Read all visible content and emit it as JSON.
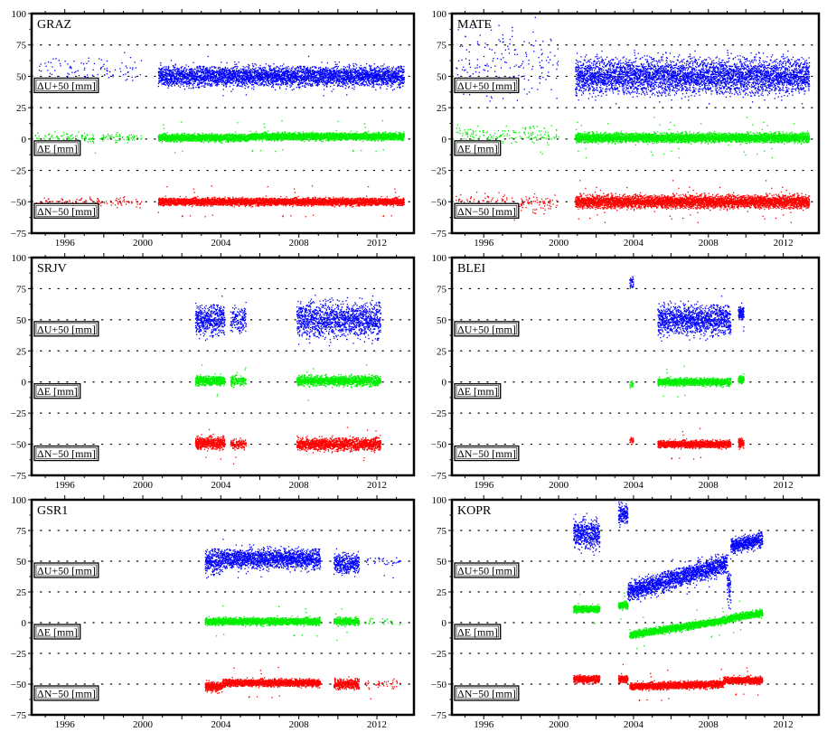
{
  "chart_data": [
    {
      "type": "scatter",
      "title": "GRAZ",
      "xlim": [
        1994.3,
        2013.9
      ],
      "ylim": [
        -75,
        100
      ],
      "xticks": [
        "1996",
        "2000",
        "2004",
        "2008",
        "2012"
      ],
      "yticks": [
        "100",
        "75",
        "50",
        "25",
        "0",
        "-25",
        "-50",
        "-75"
      ],
      "grid": true,
      "series": [
        {
          "name": "ΔU+50 [mm]",
          "color": "#0000ff",
          "intervals": [
            [
              1994.5,
              1998.6,
              53,
              6,
              0.05
            ],
            [
              1998.8,
              2000.0,
              55,
              6,
              0.06
            ],
            [
              2000.8,
              2013.4,
              50,
              4,
              0.9
            ]
          ]
        },
        {
          "name": "ΔE [mm]",
          "color": "#00ee00",
          "intervals": [
            [
              1994.5,
              2000.0,
              1,
              2,
              0.07
            ],
            [
              2000.8,
              2005.5,
              1,
              1.5,
              0.9
            ],
            [
              2005.5,
              2013.4,
              2,
              1.5,
              0.9
            ]
          ]
        },
        {
          "name": "ΔN−50 [mm]",
          "color": "#ff0000",
          "intervals": [
            [
              1994.5,
              2000.0,
              -50,
              2,
              0.07
            ],
            [
              2000.8,
              2013.4,
              -50,
              1.5,
              0.9
            ]
          ]
        }
      ]
    },
    {
      "type": "scatter",
      "title": "MATE",
      "xlim": [
        1994.3,
        2013.9
      ],
      "ylim": [
        -75,
        100
      ],
      "xticks": [
        "1996",
        "2000",
        "2004",
        "2008",
        "2012"
      ],
      "yticks": [
        "100",
        "75",
        "50",
        "25",
        "0",
        "-25",
        "-50",
        "-75"
      ],
      "grid": true,
      "series": [
        {
          "name": "ΔU+50 [mm]",
          "color": "#0000ff",
          "intervals": [
            [
              1994.5,
              2000.0,
              62,
              14,
              0.08
            ],
            [
              2000.9,
              2013.4,
              50,
              7,
              0.95
            ]
          ]
        },
        {
          "name": "ΔE [mm]",
          "color": "#00ee00",
          "intervals": [
            [
              1994.5,
              2000.0,
              3,
              4,
              0.08
            ],
            [
              2000.9,
              2013.4,
              1,
              1.8,
              0.95
            ]
          ]
        },
        {
          "name": "ΔN−50 [mm]",
          "color": "#ff0000",
          "intervals": [
            [
              1994.5,
              2000.0,
              -52,
              4,
              0.08
            ],
            [
              2000.9,
              2013.4,
              -50,
              2.5,
              0.95
            ]
          ]
        }
      ]
    },
    {
      "type": "scatter",
      "title": "SRJV",
      "xlim": [
        1994.3,
        2013.9
      ],
      "ylim": [
        -75,
        100
      ],
      "xticks": [
        "1996",
        "2000",
        "2004",
        "2008",
        "2012"
      ],
      "yticks": [
        "100",
        "75",
        "50",
        "25",
        "0",
        "-25",
        "-50",
        "-75"
      ],
      "grid": true,
      "series": [
        {
          "name": "ΔU+50 [mm]",
          "color": "#0000ff",
          "intervals": [
            [
              2002.7,
              2004.2,
              50,
              6,
              0.9
            ],
            [
              2004.5,
              2005.3,
              50,
              5,
              0.5
            ],
            [
              2007.9,
              2012.2,
              50,
              7,
              0.85
            ]
          ]
        },
        {
          "name": "ΔE [mm]",
          "color": "#00ee00",
          "intervals": [
            [
              2002.7,
              2004.2,
              1,
              2,
              0.9
            ],
            [
              2004.5,
              2005.3,
              1,
              2,
              0.5
            ],
            [
              2007.9,
              2012.2,
              1,
              2,
              0.85
            ]
          ]
        },
        {
          "name": "ΔN−50 [mm]",
          "color": "#ff0000",
          "intervals": [
            [
              2002.7,
              2004.2,
              -49,
              2.5,
              0.9
            ],
            [
              2004.5,
              2005.3,
              -50,
              2,
              0.5
            ],
            [
              2007.9,
              2012.2,
              -50,
              2.5,
              0.85
            ]
          ]
        }
      ]
    },
    {
      "type": "scatter",
      "title": "BLEI",
      "xlim": [
        1994.3,
        2013.9
      ],
      "ylim": [
        -75,
        100
      ],
      "xticks": [
        "1996",
        "2000",
        "2004",
        "2008",
        "2012"
      ],
      "yticks": [
        "100",
        "75",
        "50",
        "25",
        "0",
        "-25",
        "-50",
        "-75"
      ],
      "grid": true,
      "series": [
        {
          "name": "ΔU+50 [mm]",
          "color": "#0000ff",
          "intervals": [
            [
              2003.8,
              2004.0,
              80,
              3,
              0.4
            ],
            [
              2005.3,
              2009.2,
              50,
              6,
              0.9
            ],
            [
              2009.6,
              2009.9,
              55,
              3,
              0.9
            ]
          ]
        },
        {
          "name": "ΔE [mm]",
          "color": "#00ee00",
          "intervals": [
            [
              2003.8,
              2004.0,
              -2,
              1.5,
              0.4
            ],
            [
              2005.3,
              2009.2,
              0,
              1.5,
              0.9
            ],
            [
              2009.6,
              2009.9,
              2,
              1.5,
              0.9
            ]
          ]
        },
        {
          "name": "ΔN−50 [mm]",
          "color": "#ff0000",
          "intervals": [
            [
              2003.8,
              2004.0,
              -48,
              1.5,
              0.4
            ],
            [
              2005.3,
              2009.2,
              -50,
              1.5,
              0.9
            ],
            [
              2009.6,
              2009.9,
              -49,
              2,
              0.9
            ]
          ]
        }
      ]
    },
    {
      "type": "scatter",
      "title": "GSR1",
      "xlim": [
        1994.3,
        2013.9
      ],
      "ylim": [
        -75,
        100
      ],
      "xticks": [
        "1996",
        "2000",
        "2004",
        "2008",
        "2012"
      ],
      "yticks": [
        "100",
        "75",
        "50",
        "25",
        "0",
        "-25",
        "-50",
        "-75"
      ],
      "grid": true,
      "series": [
        {
          "name": "ΔU+50 [mm]",
          "color": "#0000ff",
          "intervals": [
            [
              2003.2,
              2004.1,
              50,
              5,
              0.9
            ],
            [
              2004.1,
              2009.1,
              52,
              4,
              0.9
            ],
            [
              2009.8,
              2011.1,
              48,
              4,
              0.8
            ],
            [
              2011.4,
              2013.2,
              50,
              3,
              0.05
            ]
          ]
        },
        {
          "name": "ΔE [mm]",
          "color": "#00ee00",
          "intervals": [
            [
              2003.2,
              2009.1,
              1,
              1.5,
              0.9
            ],
            [
              2009.8,
              2011.1,
              1,
              1.5,
              0.8
            ],
            [
              2011.4,
              2013.2,
              1,
              1.5,
              0.05
            ]
          ]
        },
        {
          "name": "ΔN−50 [mm]",
          "color": "#ff0000",
          "intervals": [
            [
              2003.2,
              2004.1,
              -52,
              2,
              0.9
            ],
            [
              2004.1,
              2009.1,
              -49,
              1.5,
              0.9
            ],
            [
              2009.8,
              2011.1,
              -50,
              2,
              0.8
            ],
            [
              2011.4,
              2013.2,
              -50,
              2,
              0.05
            ]
          ]
        }
      ]
    },
    {
      "type": "scatter",
      "title": "KOPR",
      "xlim": [
        1994.3,
        2013.9
      ],
      "ylim": [
        -75,
        100
      ],
      "xticks": [
        "1996",
        "2000",
        "2004",
        "2008",
        "2012"
      ],
      "yticks": [
        "100",
        "75",
        "50",
        "25",
        "0",
        "-25",
        "-50",
        "-75"
      ],
      "grid": true,
      "series": [
        {
          "name": "ΔU+50 [mm]",
          "color": "#0000ff",
          "intervals": [
            [
              2000.8,
              2002.2,
              72,
              6,
              0.9
            ],
            [
              2003.2,
              2003.7,
              88,
              4,
              0.9
            ],
            [
              2003.7,
              2009.0,
              25,
              4,
              0.9,
              48
            ],
            [
              2009.0,
              2009.2,
              30,
              10,
              0.9
            ],
            [
              2009.2,
              2010.9,
              62,
              3,
              0.9,
              68
            ]
          ]
        },
        {
          "name": "ΔE [mm]",
          "color": "#00ee00",
          "intervals": [
            [
              2000.8,
              2002.2,
              11,
              1.5,
              0.9
            ],
            [
              2003.2,
              2003.7,
              14,
              1.5,
              0.9
            ],
            [
              2003.8,
              2009.0,
              -10,
              1.5,
              0.9,
              2
            ],
            [
              2009.0,
              2010.9,
              3,
              1.5,
              0.9,
              8
            ]
          ]
        },
        {
          "name": "ΔN−50 [mm]",
          "color": "#ff0000",
          "intervals": [
            [
              2000.8,
              2002.2,
              -46,
              1.5,
              0.9
            ],
            [
              2003.2,
              2003.7,
              -46,
              1.5,
              0.9
            ],
            [
              2003.8,
              2008.8,
              -52,
              1.5,
              0.9,
              -50
            ],
            [
              2008.8,
              2010.9,
              -47,
              1.5,
              0.9
            ]
          ]
        }
      ]
    }
  ]
}
